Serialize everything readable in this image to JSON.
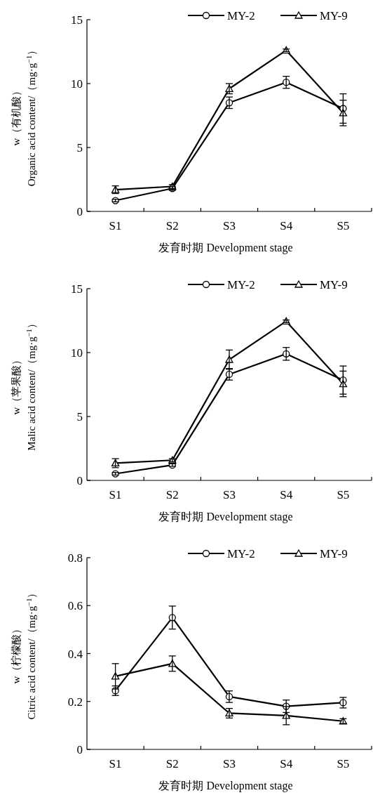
{
  "chart_data": [
    {
      "type": "line",
      "xlabel": "发育时期 Development stage",
      "ylabel": "w（有机酸）\nOrganic acid content/（mg·g$^{−1}$）",
      "categories": [
        "S1",
        "S2",
        "S3",
        "S4",
        "S5"
      ],
      "ylim": [
        0,
        15
      ],
      "yticks": [
        0,
        5,
        10,
        15
      ],
      "grid": false,
      "legend": "top right",
      "line_style": "solid",
      "series": [
        {
          "name": "MY-2",
          "color": "#000000",
          "marker": "circle",
          "values": [
            0.85,
            1.8,
            8.5,
            10.1,
            8.05
          ],
          "errors": [
            0.1,
            0.15,
            0.45,
            0.47,
            1.15
          ]
        },
        {
          "name": "MY-9",
          "color": "#000000",
          "marker": "triangle",
          "values": [
            1.7,
            1.95,
            9.6,
            12.6,
            7.7
          ],
          "errors": [
            0.3,
            0.15,
            0.4,
            0.1,
            1.0
          ]
        }
      ]
    },
    {
      "type": "line",
      "xlabel": "发育时期 Development stage",
      "ylabel": "w（苹果酸）\nMalic acid content/（mg·g$^{−1}$）",
      "categories": [
        "S1",
        "S2",
        "S3",
        "S4",
        "S5"
      ],
      "ylim": [
        0,
        15
      ],
      "yticks": [
        0,
        5,
        10,
        15
      ],
      "grid": false,
      "legend": "top right",
      "line_style": "solid",
      "series": [
        {
          "name": "MY-2",
          "color": "#000000",
          "marker": "circle",
          "values": [
            0.52,
            1.2,
            8.3,
            9.9,
            7.85
          ],
          "errors": [
            0.1,
            0.1,
            0.45,
            0.5,
            1.1
          ]
        },
        {
          "name": "MY-9",
          "color": "#000000",
          "marker": "triangle",
          "values": [
            1.35,
            1.58,
            9.45,
            12.45,
            7.55
          ],
          "errors": [
            0.35,
            0.12,
            0.75,
            0.1,
            1.0
          ]
        }
      ]
    },
    {
      "type": "line",
      "xlabel": "发育时期 Development stage",
      "ylabel": "w（柠檬酸）\nCitric acid content/（mg·g$^{−1}$）",
      "categories": [
        "S1",
        "S2",
        "S3",
        "S4",
        "S5"
      ],
      "ylim": [
        0,
        0.8
      ],
      "yticks": [
        0,
        0.2,
        0.4,
        0.6,
        0.8
      ],
      "grid": false,
      "legend": "top right",
      "line_style": "solid",
      "series": [
        {
          "name": "MY-2",
          "color": "#000000",
          "marker": "circle",
          "values": [
            0.245,
            0.55,
            0.22,
            0.18,
            0.195
          ],
          "errors": [
            0.02,
            0.048,
            0.024,
            0.026,
            0.022
          ]
        },
        {
          "name": "MY-9",
          "color": "#000000",
          "marker": "triangle",
          "values": [
            0.305,
            0.358,
            0.151,
            0.141,
            0.118
          ],
          "errors": [
            0.053,
            0.032,
            0.02,
            0.038,
            0.01
          ]
        }
      ]
    }
  ]
}
